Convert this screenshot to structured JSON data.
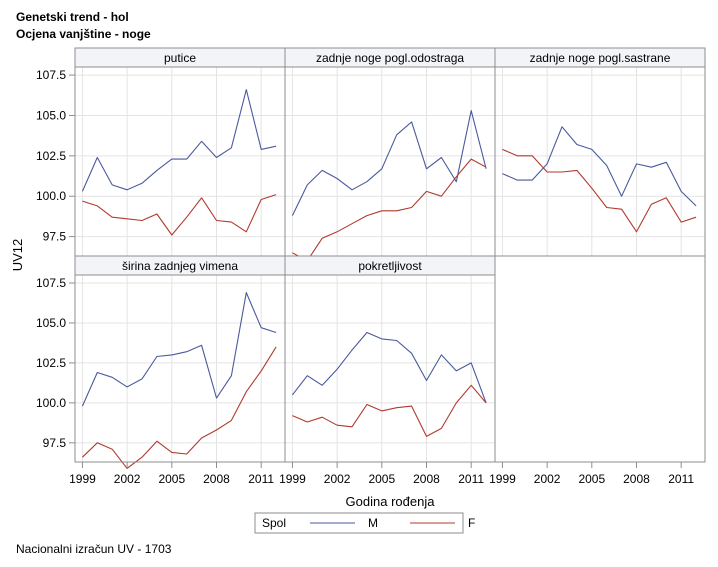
{
  "titles": {
    "line1": "Genetski trend - hol",
    "line2": "Ocjena vanjštine - noge"
  },
  "footnote": "Nacionalni izračun UV - 1703",
  "colors": {
    "M": "#4a5a9c",
    "F": "#b03a2e",
    "frame": "#8e8e8e",
    "grid": "#e4e4e4",
    "header_bg": "#f3f4f8"
  },
  "chart_data": {
    "type": "line",
    "layout": "panel grid 3 columns x 2 rows, shared axes",
    "ylabel": "UV12",
    "xlabel": "Godina rođenja",
    "xlim": [
      1998.5,
      2012.6
    ],
    "ylim": [
      96.3,
      108.0
    ],
    "x_ticks": [
      1999,
      2002,
      2005,
      2008,
      2011
    ],
    "y_ticks": [
      97.5,
      100.0,
      102.5,
      105.0,
      107.5
    ],
    "y_tick_labels": [
      "97.5",
      "100.0",
      "102.5",
      "105.0",
      "107.5"
    ],
    "grid": true,
    "legend": {
      "title": "Spol",
      "placement": "bottom-center",
      "entries": [
        {
          "key": "M",
          "label": "M"
        },
        {
          "key": "F",
          "label": "F"
        }
      ]
    },
    "panels": [
      {
        "label": "putice",
        "x": [
          1999,
          2000,
          2001,
          2002,
          2003,
          2004,
          2005,
          2006,
          2007,
          2008,
          2009,
          2010,
          2011,
          2012
        ],
        "series": [
          {
            "name": "M",
            "values": [
              100.3,
              102.4,
              100.7,
              100.4,
              100.8,
              101.6,
              102.3,
              102.3,
              103.4,
              102.4,
              103.0,
              106.6,
              102.9,
              103.1
            ]
          },
          {
            "name": "F",
            "values": [
              99.7,
              99.4,
              98.7,
              98.6,
              98.5,
              98.9,
              97.6,
              98.7,
              99.9,
              98.5,
              98.4,
              97.8,
              99.8,
              100.1
            ]
          }
        ]
      },
      {
        "label": "zadnje noge pogl.odostraga",
        "x": [
          1999,
          2000,
          2001,
          2002,
          2003,
          2004,
          2005,
          2006,
          2007,
          2008,
          2009,
          2010,
          2011,
          2012
        ],
        "series": [
          {
            "name": "M",
            "values": [
              98.8,
              100.7,
              101.6,
              101.1,
              100.4,
              100.9,
              101.7,
              103.8,
              104.6,
              101.7,
              102.4,
              100.9,
              105.3,
              101.7
            ]
          },
          {
            "name": "F",
            "values": [
              96.5,
              96.0,
              97.4,
              97.8,
              98.3,
              98.8,
              99.1,
              99.1,
              99.3,
              100.3,
              100.0,
              101.2,
              102.3,
              101.8
            ]
          }
        ]
      },
      {
        "label": "zadnje noge pogl.sastrane",
        "x": [
          1999,
          2000,
          2001,
          2002,
          2003,
          2004,
          2005,
          2006,
          2007,
          2008,
          2009,
          2010,
          2011,
          2012
        ],
        "series": [
          {
            "name": "M",
            "values": [
              101.4,
              101.0,
              101.0,
              102.0,
              104.3,
              103.2,
              102.9,
              101.9,
              100.0,
              102.0,
              101.8,
              102.1,
              100.3,
              99.4
            ]
          },
          {
            "name": "F",
            "values": [
              102.9,
              102.5,
              102.5,
              101.5,
              101.5,
              101.6,
              100.5,
              99.3,
              99.2,
              97.8,
              99.5,
              99.9,
              98.4,
              98.7
            ]
          }
        ]
      },
      {
        "label": "širina zadnjeg vimena",
        "x": [
          1999,
          2000,
          2001,
          2002,
          2003,
          2004,
          2005,
          2006,
          2007,
          2008,
          2009,
          2010,
          2011,
          2012
        ],
        "series": [
          {
            "name": "M",
            "values": [
              99.8,
              101.9,
              101.6,
              101.0,
              101.5,
              102.9,
              103.0,
              103.2,
              103.6,
              100.3,
              101.7,
              106.9,
              104.7,
              104.4
            ]
          },
          {
            "name": "F",
            "values": [
              96.6,
              97.5,
              97.1,
              95.9,
              96.6,
              97.6,
              96.9,
              96.8,
              97.8,
              98.3,
              98.9,
              100.7,
              102.0,
              103.5
            ]
          }
        ]
      },
      {
        "label": "pokretljivost",
        "x": [
          1999,
          2000,
          2001,
          2002,
          2003,
          2004,
          2005,
          2006,
          2007,
          2008,
          2009,
          2010,
          2011,
          2012
        ],
        "series": [
          {
            "name": "M",
            "values": [
              100.5,
              101.7,
              101.1,
              102.1,
              103.3,
              104.4,
              104.0,
              103.9,
              103.1,
              101.4,
              103.0,
              102.0,
              102.5,
              100.0
            ]
          },
          {
            "name": "F",
            "values": [
              99.2,
              98.8,
              99.1,
              98.6,
              98.5,
              99.9,
              99.5,
              99.7,
              99.8,
              97.9,
              98.4,
              100.0,
              101.1,
              100.0
            ]
          }
        ]
      }
    ]
  }
}
